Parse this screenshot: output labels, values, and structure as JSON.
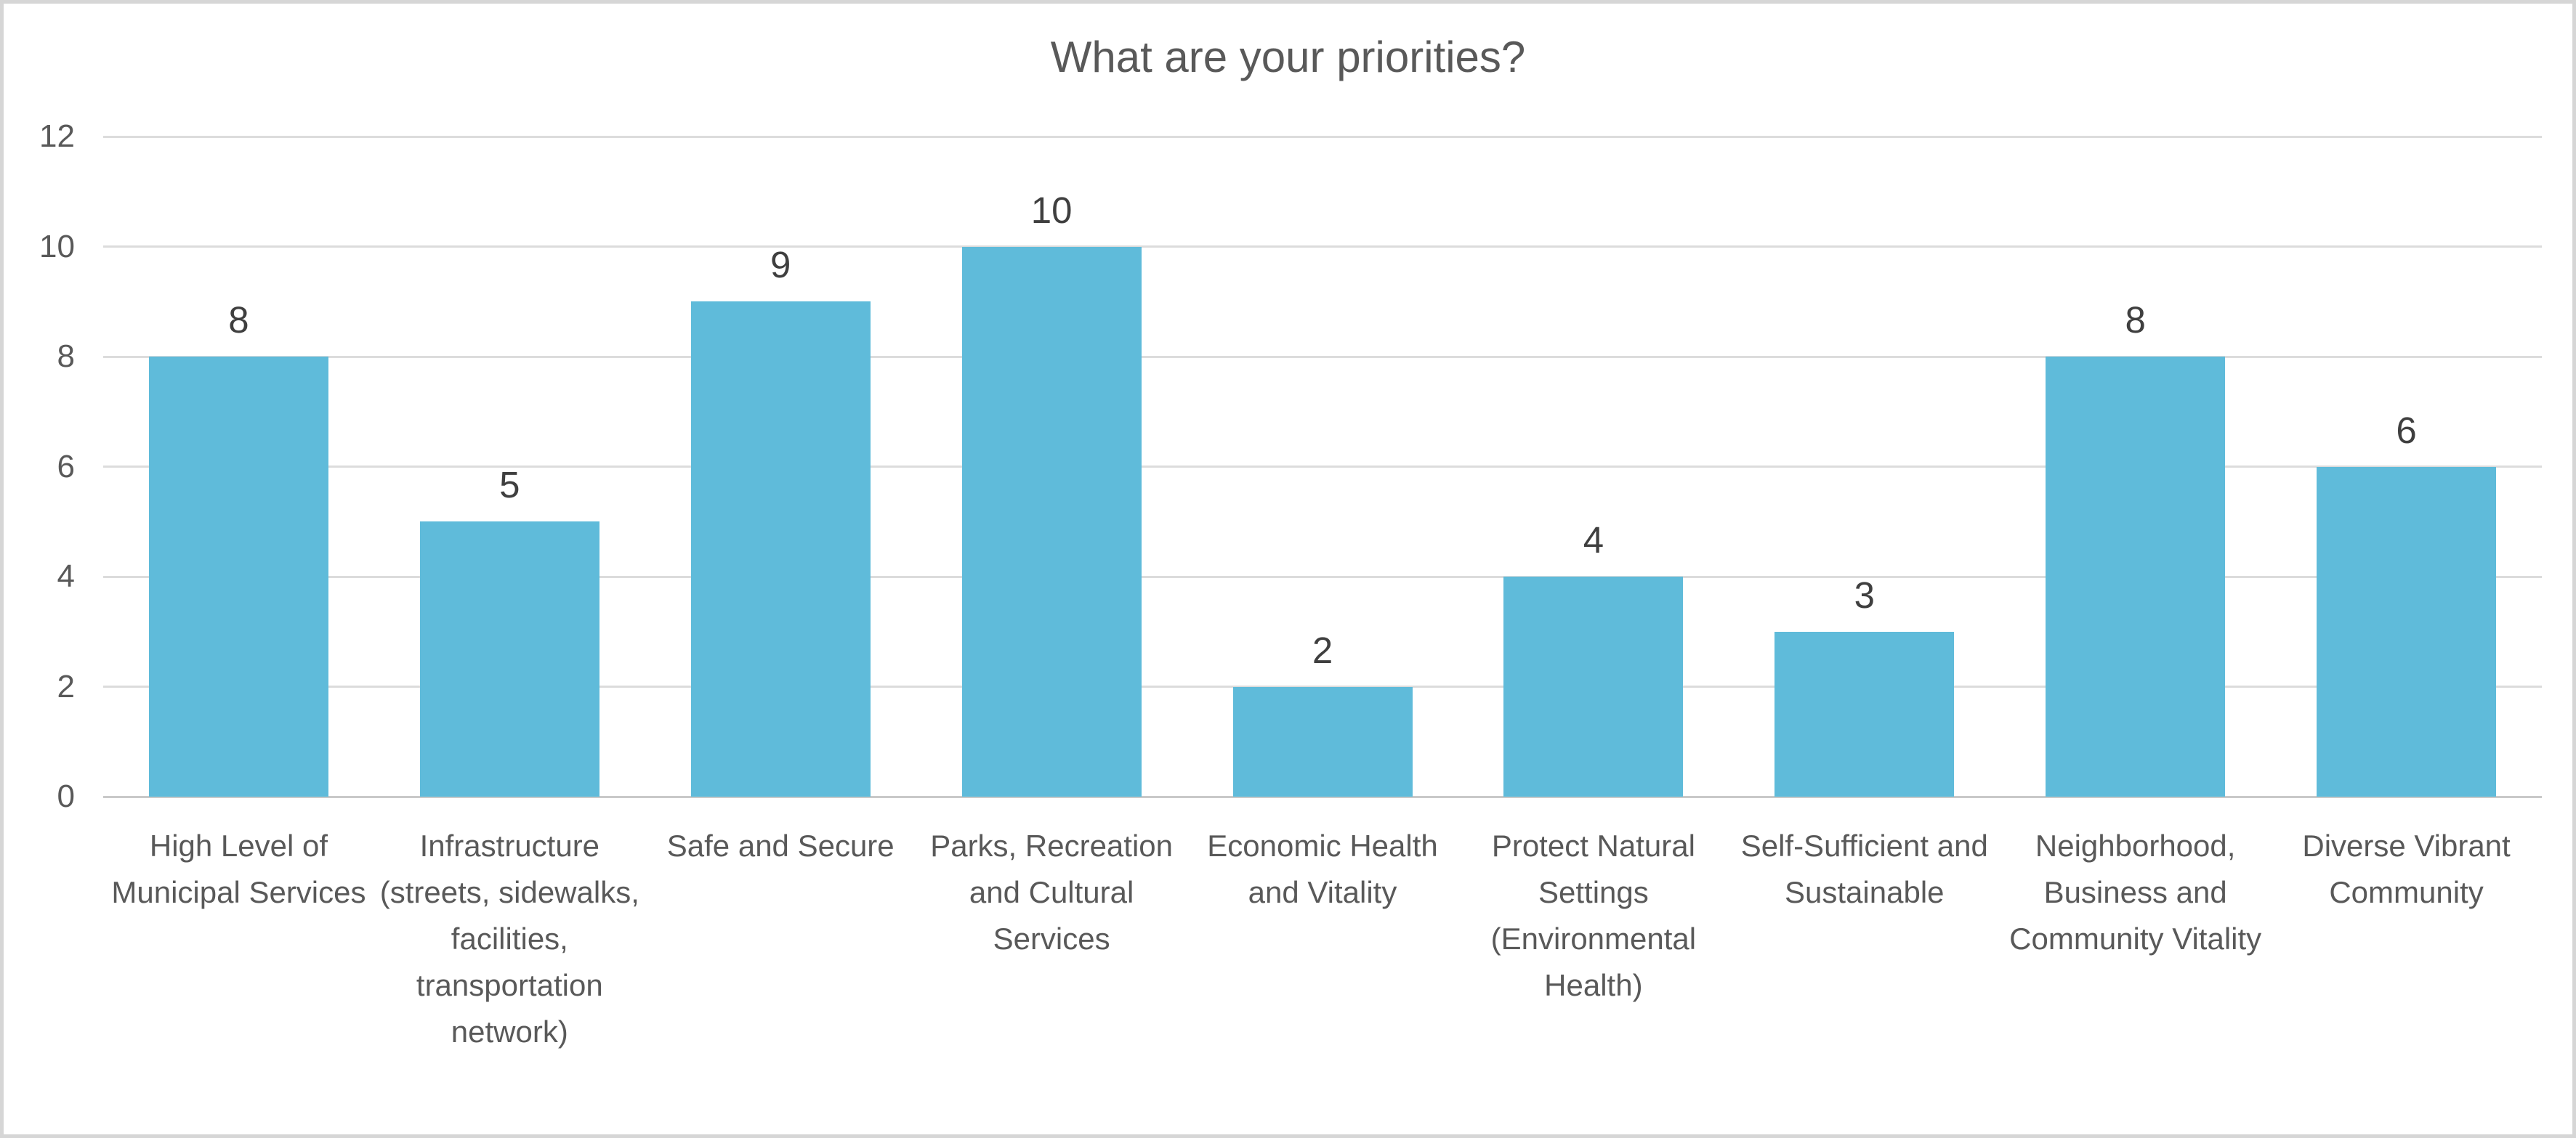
{
  "chart_data": {
    "type": "bar",
    "title": "What are your priorities?",
    "categories": [
      "High Level of Municipal Services",
      "Infrastructure (streets, sidewalks, facilities, transportation network)",
      "Safe and Secure",
      "Parks, Recreation and Cultural Services",
      "Economic Health and Vitality",
      "Protect Natural Settings (Environmental Health)",
      "Self-Sufficient and Sustainable",
      "Neighborhood, Business and Community Vitality",
      "Diverse Vibrant Community"
    ],
    "values": [
      8,
      5,
      9,
      10,
      2,
      4,
      3,
      8,
      6
    ],
    "data_labels": [
      8,
      5,
      9,
      10,
      2,
      4,
      3,
      8,
      6
    ],
    "xlabel": "",
    "ylabel": "",
    "ylim": [
      0,
      12
    ],
    "yticks": [
      0,
      2,
      4,
      6,
      8,
      10,
      12
    ],
    "grid": true,
    "legend": false,
    "bar_color": "#5fbbda",
    "title_color": "#595959",
    "axis_text_color": "#595959",
    "data_label_color": "#3f3f3f",
    "gridline_color": "#dcdcdc"
  }
}
